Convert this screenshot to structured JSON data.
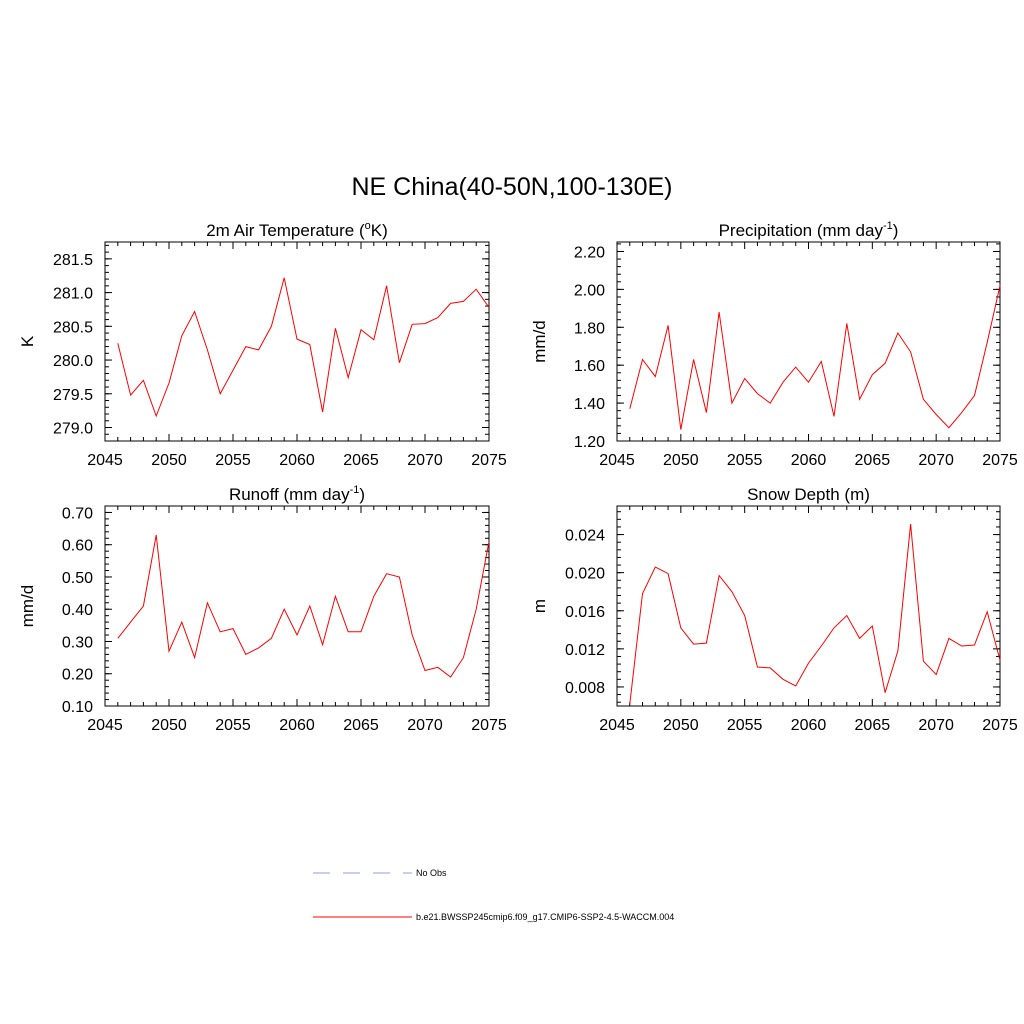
{
  "title": "NE China(40-50N,100-130E)",
  "legend": [
    {
      "label": "No Obs",
      "color": "#9999dd",
      "dash": true
    },
    {
      "label": "b.e21.BWSSP245cmip6.f09_g17.CMIP6-SSP2-4.5-WACCM.004",
      "color": "#ff0000",
      "dash": false
    }
  ],
  "chart_data": [
    {
      "type": "line",
      "title": "2m Air Temperature (oK)",
      "title_parts": [
        "2m Air Temperature (",
        "o",
        "K)"
      ],
      "title_sup_index": 1,
      "ylabel": "K",
      "xlim": [
        2045,
        2075
      ],
      "ylim": [
        278.8,
        281.75
      ],
      "xticks": [
        2045,
        2050,
        2055,
        2060,
        2065,
        2070,
        2075
      ],
      "xtick_labels": [
        "2045",
        "2050",
        "2055",
        "2060",
        "2065",
        "2070",
        "2075"
      ],
      "yticks": [
        279.0,
        279.5,
        280.0,
        280.5,
        281.0,
        281.5
      ],
      "ytick_labels": [
        "279.0",
        "279.5",
        "280.0",
        "280.5",
        "281.0",
        "281.5"
      ],
      "yminor": 0.1,
      "series": [
        {
          "color": "#ff0000",
          "x": [
            2046,
            2047,
            2048,
            2049,
            2050,
            2051,
            2052,
            2053,
            2054,
            2055,
            2056,
            2057,
            2058,
            2059,
            2060,
            2061,
            2062,
            2063,
            2064,
            2065,
            2066,
            2067,
            2068,
            2069,
            2070,
            2071,
            2072,
            2073,
            2074,
            2075
          ],
          "values": [
            280.25,
            279.48,
            279.7,
            279.17,
            279.66,
            280.36,
            280.72,
            280.15,
            279.5,
            279.85,
            280.2,
            280.15,
            280.5,
            281.22,
            280.31,
            280.23,
            279.23,
            280.47,
            279.74,
            280.45,
            280.3,
            281.1,
            279.96,
            280.53,
            280.54,
            280.63,
            280.84,
            280.87,
            281.05,
            280.78
          ]
        }
      ]
    },
    {
      "type": "line",
      "title": "Precipitation (mm day-1)",
      "title_parts": [
        "Precipitation (mm day",
        "-1",
        ")"
      ],
      "title_sup_index": 1,
      "ylabel": "mm/d",
      "xlim": [
        2045,
        2075
      ],
      "ylim": [
        1.2,
        2.25
      ],
      "xticks": [
        2045,
        2050,
        2055,
        2060,
        2065,
        2070,
        2075
      ],
      "xtick_labels": [
        "2045",
        "2050",
        "2055",
        "2060",
        "2065",
        "2070",
        "2075"
      ],
      "yticks": [
        1.2,
        1.4,
        1.6,
        1.8,
        2.0,
        2.2
      ],
      "ytick_labels": [
        "1.20",
        "1.40",
        "1.60",
        "1.80",
        "2.00",
        "2.20"
      ],
      "yminor": 0.04,
      "series": [
        {
          "color": "#ff0000",
          "x": [
            2046,
            2047,
            2048,
            2049,
            2050,
            2051,
            2052,
            2053,
            2054,
            2055,
            2056,
            2057,
            2058,
            2059,
            2060,
            2061,
            2062,
            2063,
            2064,
            2065,
            2066,
            2067,
            2068,
            2069,
            2070,
            2071,
            2072,
            2073,
            2074,
            2075
          ],
          "values": [
            1.37,
            1.63,
            1.54,
            1.81,
            1.26,
            1.63,
            1.35,
            1.88,
            1.4,
            1.53,
            1.45,
            1.4,
            1.51,
            1.59,
            1.51,
            1.62,
            1.33,
            1.82,
            1.42,
            1.55,
            1.61,
            1.77,
            1.67,
            1.42,
            1.34,
            1.27,
            1.35,
            1.44,
            1.72,
            2.02
          ]
        }
      ]
    },
    {
      "type": "line",
      "title": "Runoff (mm day-1)",
      "title_parts": [
        "Runoff (mm day",
        "-1",
        ")"
      ],
      "title_sup_index": 1,
      "ylabel": "mm/d",
      "xlim": [
        2045,
        2075
      ],
      "ylim": [
        0.1,
        0.72
      ],
      "xticks": [
        2045,
        2050,
        2055,
        2060,
        2065,
        2070,
        2075
      ],
      "xtick_labels": [
        "2045",
        "2050",
        "2055",
        "2060",
        "2065",
        "2070",
        "2075"
      ],
      "yticks": [
        0.1,
        0.2,
        0.3,
        0.4,
        0.5,
        0.6,
        0.7
      ],
      "ytick_labels": [
        "0.10",
        "0.20",
        "0.30",
        "0.40",
        "0.50",
        "0.60",
        "0.70"
      ],
      "yminor": 0.02,
      "series": [
        {
          "color": "#ff0000",
          "x": [
            2046,
            2047,
            2048,
            2049,
            2050,
            2051,
            2052,
            2053,
            2054,
            2055,
            2056,
            2057,
            2058,
            2059,
            2060,
            2061,
            2062,
            2063,
            2064,
            2065,
            2066,
            2067,
            2068,
            2069,
            2070,
            2071,
            2072,
            2073,
            2074,
            2075
          ],
          "values": [
            0.31,
            0.36,
            0.41,
            0.63,
            0.27,
            0.36,
            0.25,
            0.42,
            0.33,
            0.34,
            0.26,
            0.28,
            0.31,
            0.4,
            0.32,
            0.41,
            0.29,
            0.44,
            0.33,
            0.33,
            0.44,
            0.51,
            0.5,
            0.32,
            0.21,
            0.22,
            0.19,
            0.25,
            0.4,
            0.61
          ]
        }
      ]
    },
    {
      "type": "line",
      "title": "Snow Depth (m)",
      "title_parts": [
        "Snow Depth (m)"
      ],
      "title_sup_index": -1,
      "ylabel": "m",
      "xlim": [
        2045,
        2075
      ],
      "ylim": [
        0.006,
        0.027
      ],
      "xticks": [
        2045,
        2050,
        2055,
        2060,
        2065,
        2070,
        2075
      ],
      "xtick_labels": [
        "2045",
        "2050",
        "2055",
        "2060",
        "2065",
        "2070",
        "2075"
      ],
      "yticks": [
        0.008,
        0.012,
        0.016,
        0.02,
        0.024
      ],
      "ytick_labels": [
        "0.008",
        "0.012",
        "0.016",
        "0.020",
        "0.024"
      ],
      "yminor": 0.0008,
      "series": [
        {
          "color": "#ff0000",
          "x": [
            2046,
            2047,
            2048,
            2049,
            2050,
            2051,
            2052,
            2053,
            2054,
            2055,
            2056,
            2057,
            2058,
            2059,
            2060,
            2061,
            2062,
            2063,
            2064,
            2065,
            2066,
            2067,
            2068,
            2069,
            2070,
            2071,
            2072,
            2073,
            2074,
            2075
          ],
          "values": [
            0.0062,
            0.0178,
            0.0206,
            0.0199,
            0.0142,
            0.0125,
            0.0126,
            0.0197,
            0.018,
            0.0155,
            0.0101,
            0.01,
            0.0088,
            0.0081,
            0.0105,
            0.0123,
            0.0142,
            0.0155,
            0.0131,
            0.0144,
            0.0074,
            0.0118,
            0.0251,
            0.0107,
            0.0093,
            0.0131,
            0.0123,
            0.0124,
            0.0159,
            0.0108
          ]
        }
      ]
    }
  ]
}
